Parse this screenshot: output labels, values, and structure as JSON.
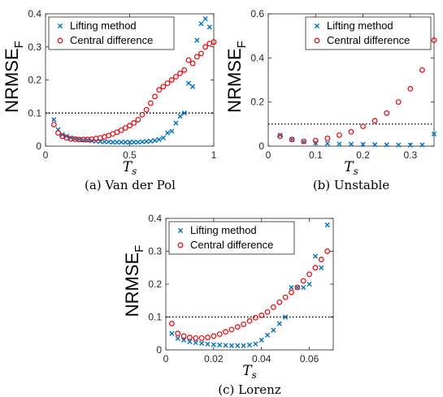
{
  "colors": {
    "lifting": "#0072BD",
    "central": "#E8141A",
    "reference": "#000000"
  },
  "marker_names": {
    "lifting": "cross-marker",
    "central": "circle-marker"
  },
  "chart_data": [
    {
      "type": "scatter",
      "caption": "(a) Van der Pol",
      "ylabel": "NRMSE",
      "ylabel_sub": "F",
      "xlabel": "T",
      "xlabel_sub": "s",
      "xlim": [
        0,
        1.0
      ],
      "ylim": [
        0,
        0.4
      ],
      "xticks": [
        0,
        0.5,
        1
      ],
      "xtick_labels": [
        "0",
        "0.5",
        "1"
      ],
      "yticks": [
        0,
        0.1,
        0.2,
        0.3,
        0.4
      ],
      "ytick_labels": [
        "0",
        "0.1",
        "0.2",
        "0.3",
        "0.4"
      ],
      "reference_y": 0.1,
      "legend_position": "top-left",
      "series": [
        {
          "name": "Lifting method",
          "marker": "x",
          "x": [
            0.05,
            0.075,
            0.1,
            0.125,
            0.15,
            0.175,
            0.2,
            0.225,
            0.25,
            0.275,
            0.3,
            0.325,
            0.35,
            0.375,
            0.4,
            0.425,
            0.45,
            0.475,
            0.5,
            0.525,
            0.55,
            0.575,
            0.6,
            0.625,
            0.65,
            0.675,
            0.7,
            0.725,
            0.75,
            0.775,
            0.8,
            0.825,
            0.85,
            0.875,
            0.9,
            0.925,
            0.95,
            0.975
          ],
          "y": [
            0.08,
            0.05,
            0.035,
            0.03,
            0.025,
            0.022,
            0.02,
            0.018,
            0.018,
            0.016,
            0.015,
            0.014,
            0.013,
            0.013,
            0.012,
            0.012,
            0.012,
            0.012,
            0.012,
            0.012,
            0.012,
            0.013,
            0.014,
            0.015,
            0.017,
            0.02,
            0.025,
            0.04,
            0.045,
            0.07,
            0.09,
            0.1,
            0.19,
            0.18,
            0.32,
            0.37,
            0.385,
            0.36
          ]
        },
        {
          "name": "Central difference",
          "marker": "o",
          "x": [
            0.05,
            0.075,
            0.1,
            0.125,
            0.15,
            0.175,
            0.2,
            0.225,
            0.25,
            0.275,
            0.3,
            0.325,
            0.35,
            0.375,
            0.4,
            0.425,
            0.45,
            0.475,
            0.5,
            0.525,
            0.55,
            0.575,
            0.6,
            0.625,
            0.65,
            0.675,
            0.7,
            0.725,
            0.75,
            0.775,
            0.8,
            0.825,
            0.85,
            0.875,
            0.9,
            0.925,
            0.95,
            0.975,
            1.0
          ],
          "y": [
            0.065,
            0.04,
            0.03,
            0.025,
            0.022,
            0.021,
            0.02,
            0.02,
            0.02,
            0.021,
            0.023,
            0.025,
            0.028,
            0.032,
            0.037,
            0.042,
            0.048,
            0.055,
            0.062,
            0.07,
            0.08,
            0.095,
            0.11,
            0.13,
            0.15,
            0.17,
            0.18,
            0.19,
            0.2,
            0.21,
            0.22,
            0.23,
            0.26,
            0.25,
            0.27,
            0.28,
            0.3,
            0.31,
            0.315
          ]
        }
      ]
    },
    {
      "type": "scatter",
      "caption": "(b) Unstable",
      "ylabel": "NRMSE",
      "ylabel_sub": "F",
      "xlabel": "T",
      "xlabel_sub": "s",
      "xlim": [
        0,
        0.35
      ],
      "ylim": [
        0,
        0.6
      ],
      "xticks": [
        0,
        0.1,
        0.2,
        0.3
      ],
      "xtick_labels": [
        "0",
        "0.1",
        "0.2",
        "0.3"
      ],
      "yticks": [
        0,
        0.2,
        0.4,
        0.6
      ],
      "ytick_labels": [
        "0",
        "0.2",
        "0.4",
        "0.6"
      ],
      "reference_y": 0.1,
      "legend_position": "top-right",
      "series": [
        {
          "name": "Lifting method",
          "marker": "x",
          "x": [
            0.025,
            0.05,
            0.075,
            0.1,
            0.125,
            0.15,
            0.175,
            0.2,
            0.225,
            0.25,
            0.275,
            0.3,
            0.325,
            0.35
          ],
          "y": [
            0.05,
            0.03,
            0.02,
            0.015,
            0.012,
            0.01,
            0.009,
            0.008,
            0.007,
            0.006,
            0.005,
            0.005,
            0.006,
            0.055
          ]
        },
        {
          "name": "Central difference",
          "marker": "o",
          "x": [
            0.025,
            0.05,
            0.075,
            0.1,
            0.125,
            0.15,
            0.175,
            0.2,
            0.225,
            0.25,
            0.275,
            0.3,
            0.325,
            0.35
          ],
          "y": [
            0.045,
            0.03,
            0.022,
            0.025,
            0.035,
            0.05,
            0.065,
            0.09,
            0.115,
            0.15,
            0.2,
            0.26,
            0.345,
            0.48
          ]
        }
      ]
    },
    {
      "type": "scatter",
      "caption": "(c) Lorenz",
      "ylabel": "NRMSE",
      "ylabel_sub": "F",
      "xlabel": "T",
      "xlabel_sub": "s",
      "xlim": [
        0,
        0.07
      ],
      "ylim": [
        0,
        0.4
      ],
      "xticks": [
        0,
        0.02,
        0.04,
        0.06
      ],
      "xtick_labels": [
        "0",
        "0.02",
        "0.04",
        "0.06"
      ],
      "yticks": [
        0,
        0.1,
        0.2,
        0.3,
        0.4
      ],
      "ytick_labels": [
        "0",
        "0.1",
        "0.2",
        "0.3",
        "0.4"
      ],
      "reference_y": 0.1,
      "legend_position": "top-left",
      "series": [
        {
          "name": "Lifting method",
          "marker": "x",
          "x": [
            0.0025,
            0.005,
            0.0075,
            0.01,
            0.0125,
            0.015,
            0.0175,
            0.02,
            0.0225,
            0.025,
            0.0275,
            0.03,
            0.0325,
            0.035,
            0.0375,
            0.04,
            0.0425,
            0.045,
            0.0475,
            0.05,
            0.0525,
            0.055,
            0.0575,
            0.06,
            0.0625,
            0.065,
            0.0675
          ],
          "y": [
            0.05,
            0.035,
            0.03,
            0.025,
            0.022,
            0.02,
            0.018,
            0.016,
            0.015,
            0.014,
            0.013,
            0.013,
            0.013,
            0.015,
            0.018,
            0.03,
            0.045,
            0.06,
            0.08,
            0.1,
            0.19,
            0.19,
            0.19,
            0.2,
            0.285,
            0.25,
            0.38
          ]
        },
        {
          "name": "Central difference",
          "marker": "o",
          "x": [
            0.0025,
            0.005,
            0.0075,
            0.01,
            0.0125,
            0.015,
            0.0175,
            0.02,
            0.0225,
            0.025,
            0.0275,
            0.03,
            0.0325,
            0.035,
            0.0375,
            0.04,
            0.0425,
            0.045,
            0.0475,
            0.05,
            0.0525,
            0.055,
            0.0575,
            0.06,
            0.0625,
            0.065,
            0.0675
          ],
          "y": [
            0.08,
            0.05,
            0.042,
            0.038,
            0.036,
            0.036,
            0.038,
            0.042,
            0.048,
            0.055,
            0.062,
            0.07,
            0.078,
            0.088,
            0.098,
            0.105,
            0.115,
            0.13,
            0.145,
            0.16,
            0.175,
            0.19,
            0.21,
            0.23,
            0.25,
            0.275,
            0.3
          ]
        }
      ]
    }
  ]
}
